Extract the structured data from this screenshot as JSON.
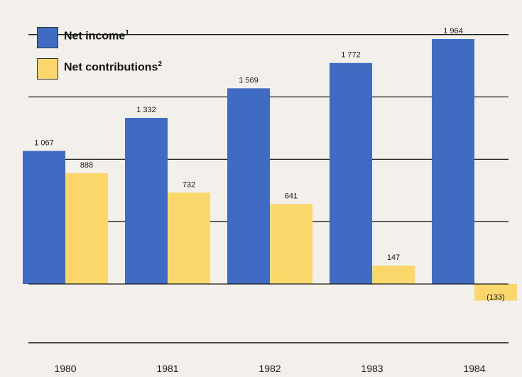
{
  "chart_data": {
    "type": "bar",
    "categories": [
      "1980",
      "1981",
      "1982",
      "1983",
      "1984"
    ],
    "series": [
      {
        "name": "Net income",
        "name_note": "1",
        "color": "#3f6bc2",
        "values": [
          1067,
          1332,
          1569,
          1772,
          1964
        ],
        "labels": [
          "1 067",
          "1 332",
          "1 569",
          "1 772",
          "1 964"
        ]
      },
      {
        "name": "Net contributions",
        "name_note": "2",
        "color": "#fbd66a",
        "values": [
          888,
          732,
          641,
          147,
          -133
        ],
        "labels": [
          "888",
          "732",
          "641",
          "147",
          "(133)"
        ]
      }
    ],
    "ylim": [
      -500,
      2000
    ],
    "grid": true,
    "legend": "top-left",
    "title": "",
    "xlabel": "",
    "ylabel": ""
  }
}
